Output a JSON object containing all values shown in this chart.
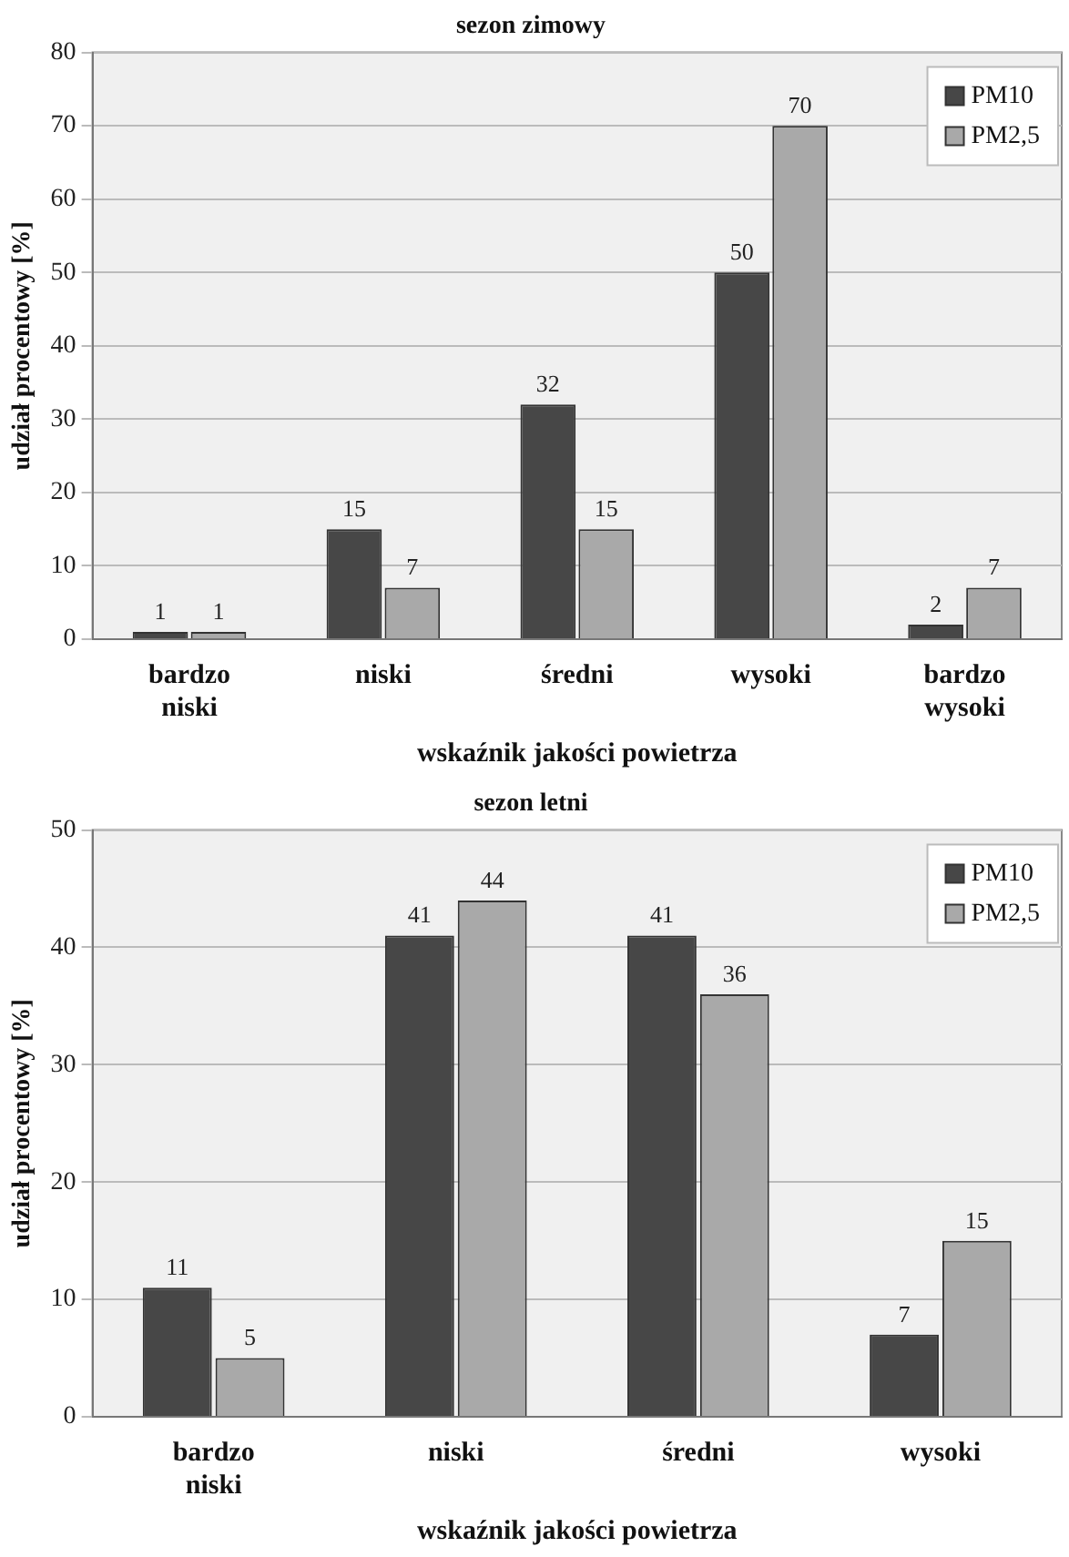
{
  "chart_data": [
    {
      "type": "bar",
      "title": "sezon zimowy",
      "xlabel": "wskaźnik jakości powietrza",
      "ylabel": "udział procentowy [%]",
      "categories": [
        "bardzo niski",
        "niski",
        "średni",
        "wysoki",
        "bardzo wysoki"
      ],
      "series": [
        {
          "name": "PM10",
          "color": "#474747",
          "values": [
            1,
            15,
            32,
            50,
            2
          ]
        },
        {
          "name": "PM2,5",
          "color": "#a9a9a9",
          "values": [
            1,
            7,
            15,
            70,
            7
          ]
        }
      ],
      "ylim": [
        0,
        80
      ],
      "yticks": [
        0,
        10,
        20,
        30,
        40,
        50,
        60,
        70,
        80
      ],
      "grid": "y",
      "legend": "top right",
      "data_labels": true
    },
    {
      "type": "bar",
      "title": "sezon letni",
      "xlabel": "wskaźnik jakości powietrza",
      "ylabel": "udział procentowy [%]",
      "categories": [
        "bardzo niski",
        "niski",
        "średni",
        "wysoki"
      ],
      "series": [
        {
          "name": "PM10",
          "color": "#474747",
          "values": [
            11,
            41,
            41,
            7
          ]
        },
        {
          "name": "PM2,5",
          "color": "#a9a9a9",
          "values": [
            5,
            44,
            36,
            15
          ]
        }
      ],
      "ylim": [
        0,
        50
      ],
      "yticks": [
        0,
        10,
        20,
        30,
        40,
        50
      ],
      "grid": "y",
      "legend": "top right",
      "data_labels": true
    }
  ]
}
